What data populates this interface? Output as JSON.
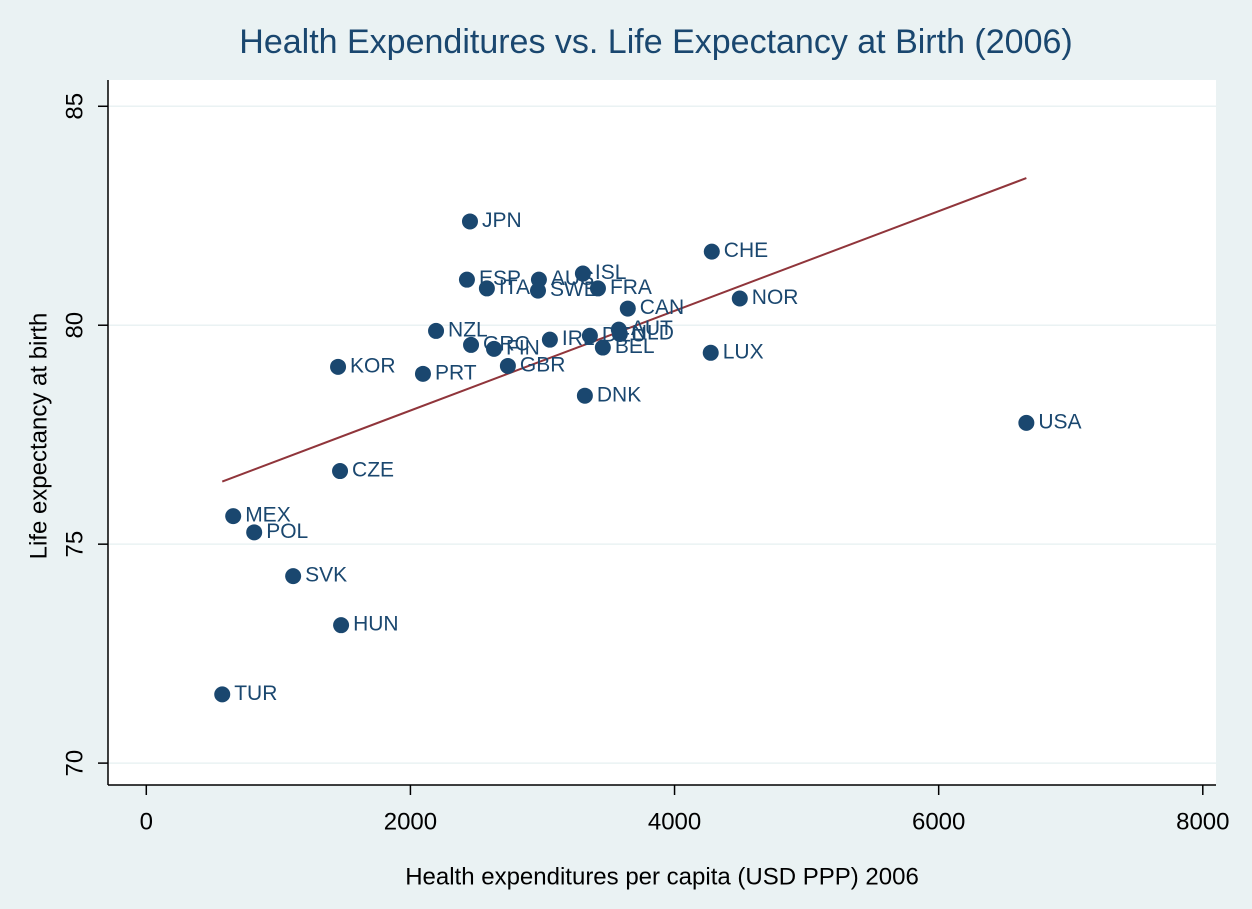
{
  "chart_data": {
    "type": "scatter",
    "title": "Health Expenditures vs. Life Expectancy at Birth (2006)",
    "x_label": "Health expenditures per capita (USD PPP) 2006",
    "y_label": "Life expectancy at birth",
    "color": "#1a476f",
    "grid": true,
    "xlim": [
      -290,
      8100
    ],
    "ylim": [
      69.5,
      85.6
    ],
    "xticks": [
      0,
      2000,
      4000,
      6000,
      8000
    ],
    "yticks": [
      70,
      75,
      80,
      85
    ],
    "labels": [
      "JPN",
      "ESP",
      "ITA",
      "AUS",
      "ISL",
      "SWE",
      "FRA",
      "CAN",
      "CHE",
      "NOR",
      "NZL",
      "GRC",
      "FIN",
      "IRL",
      "DEU",
      "NLD",
      "AUT",
      "BEL",
      "LUX",
      "KOR",
      "PRT",
      "GBR",
      "DNK",
      "USA",
      "CZE",
      "MEX",
      "POL",
      "SVK",
      "HUN",
      "TUR"
    ],
    "x": [
      2451,
      2428,
      2579,
      2973,
      3306,
      2966,
      3420,
      3646,
      4282,
      4494,
      2194,
      2459,
      2633,
      3056,
      3359,
      3586,
      3578,
      3457,
      4274,
      1452,
      2095,
      2738,
      3321,
      6664,
      1467,
      658,
      817,
      1112,
      1475,
      575
    ],
    "values": [
      82.37,
      81.04,
      80.84,
      81.04,
      81.18,
      80.79,
      80.84,
      80.38,
      81.68,
      80.61,
      79.87,
      79.55,
      79.46,
      79.67,
      79.76,
      79.8,
      79.9,
      79.49,
      79.37,
      79.05,
      78.89,
      79.07,
      78.39,
      77.77,
      76.67,
      75.64,
      75.27,
      74.27,
      73.15,
      71.57
    ],
    "fit": {
      "color": "#90353b",
      "x": [
        575,
        6664
      ],
      "y": [
        76.43,
        83.36
      ]
    }
  }
}
